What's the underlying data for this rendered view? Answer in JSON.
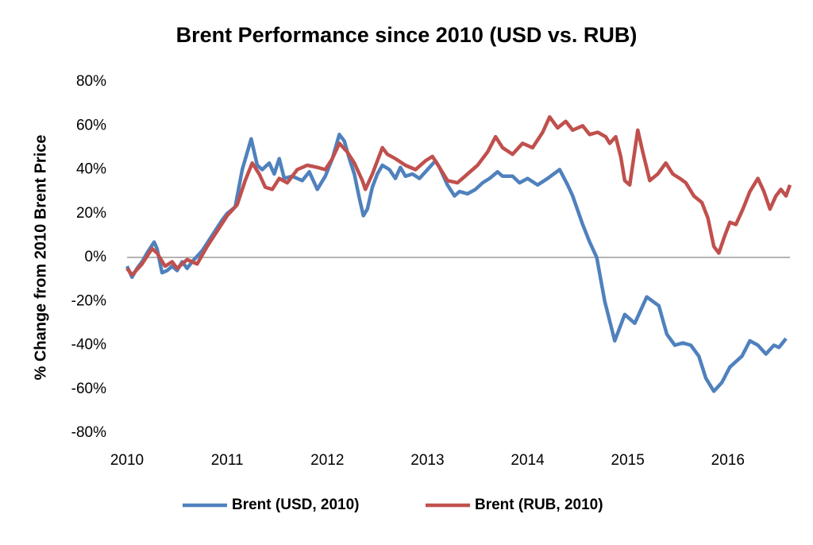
{
  "chart_data": {
    "type": "line",
    "title": "Brent Performance since 2010 (USD vs. RUB)",
    "y_label": "% Change from 2010 Brent Price",
    "xlim": [
      2010,
      2016.62
    ],
    "xticks": [
      2010,
      2011,
      2012,
      2013,
      2014,
      2015,
      2016
    ],
    "ylim": [
      -80,
      80
    ],
    "yticks": [
      {
        "value": -80,
        "label": "-80%"
      },
      {
        "value": -60,
        "label": "-60%"
      },
      {
        "value": -40,
        "label": "-40%"
      },
      {
        "value": -20,
        "label": "-20%"
      },
      {
        "value": 0,
        "label": "0%"
      },
      {
        "value": 20,
        "label": "20%"
      },
      {
        "value": 40,
        "label": "40%"
      },
      {
        "value": 60,
        "label": "60%"
      },
      {
        "value": 80,
        "label": "80%"
      }
    ],
    "legend": "bottom",
    "series": [
      {
        "name": "Brent (USD, 2010)",
        "color": "#4f81bd",
        "x": [
          2010,
          2010.05,
          2010.1,
          2010.15,
          2010.2,
          2010.27,
          2010.3,
          2010.35,
          2010.4,
          2010.45,
          2010.5,
          2010.55,
          2010.6,
          2010.65,
          2010.75,
          2010.85,
          2010.95,
          2011,
          2011.08,
          2011.15,
          2011.24,
          2011.3,
          2011.35,
          2011.42,
          2011.47,
          2011.52,
          2011.57,
          2011.65,
          2011.75,
          2011.82,
          2011.9,
          2011.98,
          2012.05,
          2012.12,
          2012.17,
          2012.22,
          2012.27,
          2012.32,
          2012.36,
          2012.4,
          2012.45,
          2012.5,
          2012.55,
          2012.62,
          2012.68,
          2012.73,
          2012.78,
          2012.85,
          2012.92,
          2013,
          2013.08,
          2013.12,
          2013.2,
          2013.27,
          2013.32,
          2013.4,
          2013.48,
          2013.55,
          2013.62,
          2013.7,
          2013.75,
          2013.85,
          2013.92,
          2014,
          2014.1,
          2014.2,
          2014.32,
          2014.4,
          2014.45,
          2014.55,
          2014.62,
          2014.69,
          2014.77,
          2014.87,
          2014.97,
          2015.07,
          2015.19,
          2015.25,
          2015.31,
          2015.39,
          2015.47,
          2015.55,
          2015.63,
          2015.71,
          2015.78,
          2015.86,
          2015.94,
          2016.02,
          2016.14,
          2016.22,
          2016.3,
          2016.38,
          2016.46,
          2016.51,
          2016.58
        ],
        "values": [
          -4,
          -9,
          -5,
          -2,
          2,
          7,
          4,
          -7,
          -6,
          -4,
          -6,
          -2,
          -5,
          -2,
          3,
          10,
          17,
          20,
          23,
          40,
          54,
          42,
          40,
          43,
          38,
          45,
          36,
          37,
          35,
          39,
          31,
          37,
          45,
          56,
          53,
          45,
          38,
          27,
          19,
          22,
          32,
          38,
          42,
          40,
          36,
          41,
          37,
          38,
          36,
          40,
          44,
          41,
          33,
          28,
          30,
          29,
          31,
          34,
          36,
          39,
          37,
          37,
          34,
          36,
          33,
          36,
          40,
          33,
          28,
          15,
          7,
          0,
          -20,
          -38,
          -26,
          -30,
          -18,
          -20,
          -22,
          -35,
          -40,
          -39,
          -40,
          -45,
          -55,
          -61,
          -57,
          -50,
          -45,
          -38,
          -40,
          -44,
          -40,
          -41,
          -37
        ]
      },
      {
        "name": "Brent (RUB, 2010)",
        "color": "#c0504d",
        "x": [
          2010,
          2010.05,
          2010.15,
          2010.25,
          2010.3,
          2010.38,
          2010.45,
          2010.5,
          2010.6,
          2010.7,
          2010.8,
          2010.9,
          2011,
          2011.1,
          2011.18,
          2011.25,
          2011.32,
          2011.38,
          2011.45,
          2011.52,
          2011.6,
          2011.7,
          2011.8,
          2011.9,
          2011.98,
          2012.05,
          2012.12,
          2012.2,
          2012.27,
          2012.35,
          2012.38,
          2012.45,
          2012.55,
          2012.6,
          2012.68,
          2012.78,
          2012.88,
          2012.98,
          2013.05,
          2013.12,
          2013.2,
          2013.3,
          2013.4,
          2013.5,
          2013.6,
          2013.68,
          2013.75,
          2013.85,
          2013.95,
          2014.05,
          2014.15,
          2014.22,
          2014.3,
          2014.38,
          2014.45,
          2014.55,
          2014.62,
          2014.7,
          2014.78,
          2014.82,
          2014.88,
          2014.93,
          2014.97,
          2015.02,
          2015.1,
          2015.15,
          2015.22,
          2015.3,
          2015.38,
          2015.45,
          2015.52,
          2015.58,
          2015.66,
          2015.74,
          2015.8,
          2015.86,
          2015.91,
          2015.97,
          2016.02,
          2016.08,
          2016.15,
          2016.22,
          2016.3,
          2016.36,
          2016.42,
          2016.48,
          2016.53,
          2016.58,
          2016.62
        ],
        "values": [
          -5,
          -8,
          -3,
          4,
          2,
          -4,
          -2,
          -5,
          -1,
          -3,
          5,
          12,
          19,
          24,
          35,
          43,
          38,
          32,
          31,
          36,
          34,
          40,
          42,
          41,
          40,
          45,
          52,
          48,
          43,
          35,
          31,
          38,
          50,
          47,
          45,
          42,
          40,
          44,
          46,
          41,
          35,
          34,
          38,
          42,
          48,
          55,
          50,
          47,
          52,
          50,
          57,
          64,
          59,
          62,
          58,
          60,
          56,
          57,
          55,
          52,
          55,
          46,
          35,
          33,
          58,
          48,
          35,
          38,
          43,
          38,
          36,
          34,
          28,
          25,
          18,
          5,
          2,
          10,
          16,
          15,
          22,
          30,
          36,
          30,
          22,
          28,
          31,
          28,
          33
        ]
      }
    ]
  }
}
